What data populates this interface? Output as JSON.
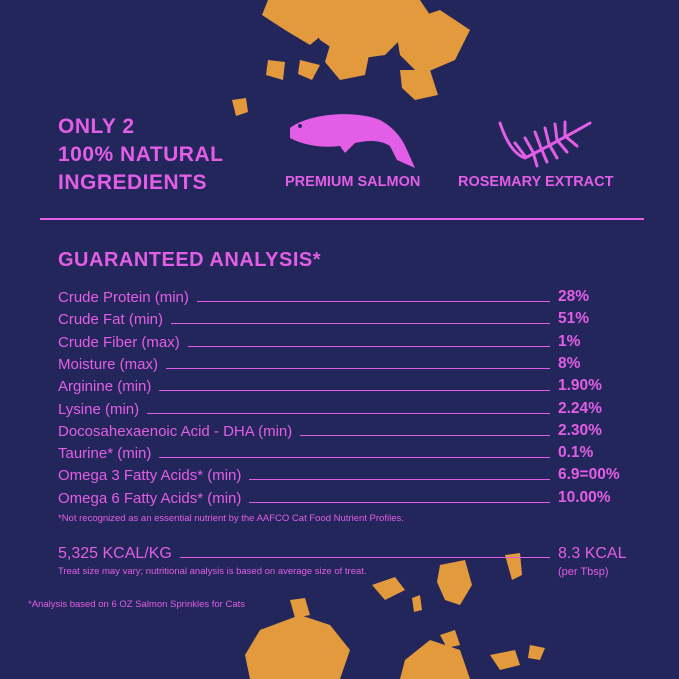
{
  "headline": [
    "ONLY 2",
    "100% NATURAL",
    "INGREDIENTS"
  ],
  "ingredients": [
    {
      "label": "PREMIUM SALMON",
      "icon": "salmon-icon"
    },
    {
      "label": "ROSEMARY EXTRACT",
      "icon": "rosemary-icon"
    }
  ],
  "analysis": {
    "title": "GUARANTEED ANALYSIS*",
    "rows": [
      {
        "label": "Crude Protein (min)",
        "value": "28%"
      },
      {
        "label": "Crude Fat (min)",
        "value": "51%"
      },
      {
        "label": "Crude Fiber (max)",
        "value": "1%"
      },
      {
        "label": "Moisture (max)",
        "value": "8%"
      },
      {
        "label": "Arginine (min)",
        "value": "1.90%"
      },
      {
        "label": "Lysine (min)",
        "value": "2.24%"
      },
      {
        "label": "Docosahexaenoic Acid - DHA (min)",
        "value": "2.30%"
      },
      {
        "label": "Taurine* (min)",
        "value": "0.1%"
      },
      {
        "label": "Omega 3 Fatty Acids* (min)",
        "value": "6.9=00%"
      },
      {
        "label": "Omega 6 Fatty Acids* (min)",
        "value": "10.00%"
      }
    ],
    "footnote": "*Not recognized as an essential nutrient by the AAFCO Cat Food Nutrient Profiles."
  },
  "calories": {
    "per_kg": "5,325 KCAL/KG",
    "per_tbsp": "8.3 KCAL",
    "per_tbsp_unit": "(per Tbsp)",
    "note": "Treat size may vary; nutritional analysis is based on average size of treat."
  },
  "bottom_note": "*Analysis based on 6 OZ Salmon Sprinkles for Cats",
  "colors": {
    "background": "#23265a",
    "accent": "#e25ee6",
    "crumbs": "#e39a3c"
  }
}
